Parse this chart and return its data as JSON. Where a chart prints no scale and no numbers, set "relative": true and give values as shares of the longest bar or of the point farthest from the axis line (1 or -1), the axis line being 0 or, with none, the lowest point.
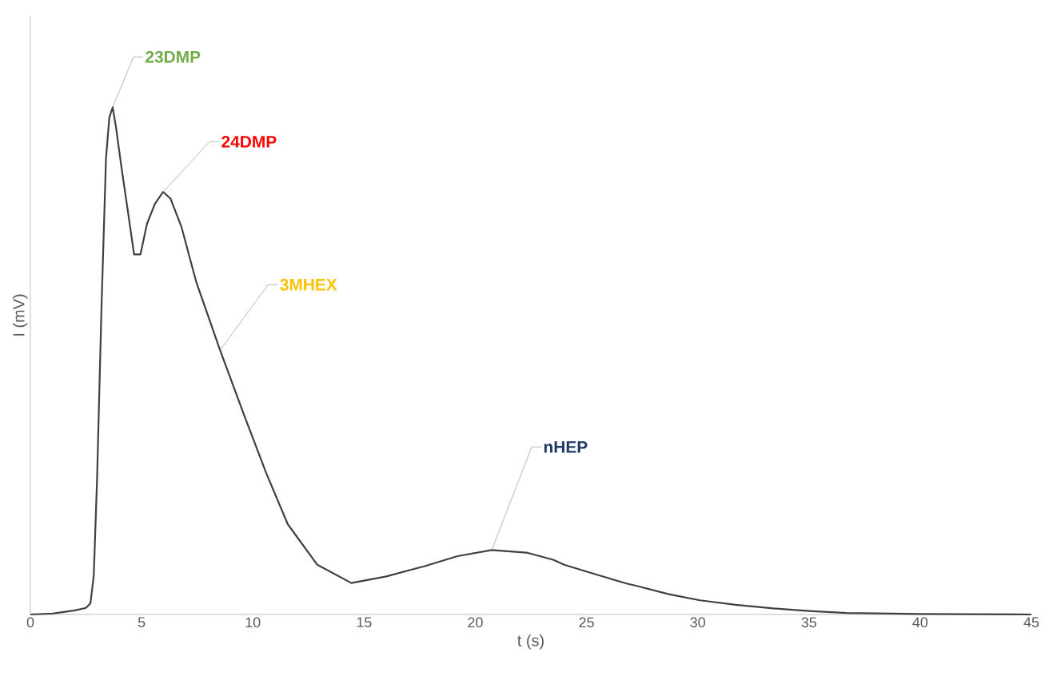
{
  "chart_data": {
    "type": "line",
    "xlabel": "t (s)",
    "ylabel": "I (mV)",
    "relative": true,
    "grid": false,
    "marker": "none",
    "line_style": "solid",
    "xlim": [
      0,
      45
    ],
    "xticks": [
      0,
      5,
      10,
      15,
      20,
      25,
      30,
      35,
      40,
      45
    ],
    "x": [
      0,
      1,
      1.5,
      2,
      2.5,
      2.7,
      2.85,
      3,
      3.2,
      3.4,
      3.55,
      3.7,
      3.85,
      4.1,
      4.4,
      4.66,
      4.95,
      5.24,
      5.6,
      5.97,
      6.3,
      6.8,
      7.46,
      8.53,
      9.6,
      10.6,
      11.57,
      12.9,
      14.43,
      16,
      17.7,
      19.2,
      20.74,
      22.3,
      23.5,
      24.0,
      25.5,
      26.8,
      27.3,
      28.7,
      30.1,
      31.7,
      33.4,
      35,
      36.7,
      40,
      45
    ],
    "series": [
      {
        "color": "#404040",
        "values": [
          0,
          0.002,
          0.005,
          0.008,
          0.013,
          0.022,
          0.077,
          0.27,
          0.61,
          0.9,
          0.98,
          1.0,
          0.96,
          0.88,
          0.79,
          0.71,
          0.71,
          0.77,
          0.81,
          0.833,
          0.82,
          0.763,
          0.655,
          0.521,
          0.394,
          0.279,
          0.178,
          0.098,
          0.062,
          0.075,
          0.095,
          0.115,
          0.127,
          0.122,
          0.108,
          0.098,
          0.078,
          0.061,
          0.056,
          0.04,
          0.028,
          0.019,
          0.012,
          0.007,
          0.003,
          0.001,
          0
        ]
      }
    ],
    "annotations": [
      {
        "text": "23DMP",
        "x": 3.7,
        "y": 1.0
      },
      {
        "text": "24DMP",
        "x": 5.97,
        "y": 0.833
      },
      {
        "text": "3MHEX",
        "x": 8.53,
        "y": 0.521
      },
      {
        "text": "nHEP",
        "x": 20.74,
        "y": 0.127
      }
    ]
  }
}
